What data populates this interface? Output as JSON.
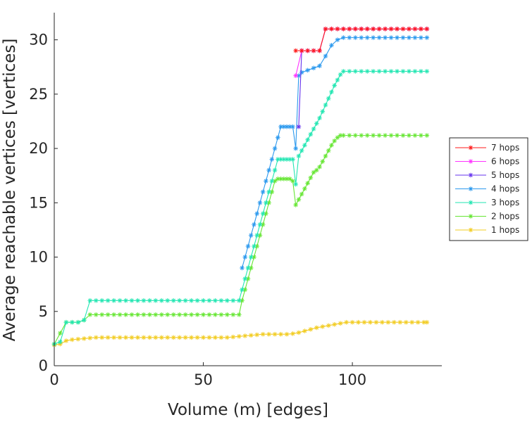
{
  "chart_data": {
    "type": "line",
    "xlabel": "Volume (m) [edges]",
    "ylabel": "Average reachable vertices [vertices]",
    "xlim": [
      0,
      130
    ],
    "ylim": [
      0,
      32.5
    ],
    "xticks": [
      "0",
      "50",
      "100"
    ],
    "yticks": [
      "0",
      "5",
      "10",
      "15",
      "20",
      "25",
      "30"
    ],
    "grid": false,
    "legend_position": "right",
    "marker": "asterisk",
    "series": [
      {
        "name": "7 hops",
        "color": "#ff1a1a",
        "x": [
          81,
          83,
          85,
          87,
          89,
          91,
          93,
          95,
          97,
          99,
          101,
          103,
          105,
          107,
          109,
          111,
          113,
          115,
          117,
          119,
          121,
          123,
          125
        ],
        "y": [
          29,
          29,
          29,
          29,
          29,
          31,
          31,
          31,
          31,
          31,
          31,
          31,
          31,
          31,
          31,
          31,
          31,
          31,
          31,
          31,
          31,
          31,
          31
        ]
      },
      {
        "name": "6 hops",
        "color": "#ff33ff",
        "x": [
          81,
          83,
          85,
          87,
          89,
          91,
          93,
          95,
          97,
          99,
          101,
          103,
          105,
          107,
          109,
          111,
          113,
          115,
          117,
          119,
          121,
          123,
          125
        ],
        "y": [
          26.7,
          29,
          29,
          29,
          29,
          31,
          31,
          31,
          31,
          31,
          31,
          31,
          31,
          31,
          31,
          31,
          31,
          31,
          31,
          31,
          31,
          31,
          31
        ]
      },
      {
        "name": "5 hops",
        "color": "#6633ee",
        "x": [
          82,
          83,
          85,
          87,
          89,
          91,
          93,
          95,
          97,
          99,
          101,
          103,
          105,
          107,
          109,
          111,
          113,
          115,
          117,
          119,
          121,
          123,
          125
        ],
        "y": [
          22,
          29,
          29,
          29,
          29,
          31,
          31,
          31,
          31,
          31,
          31,
          31,
          31,
          31,
          31,
          31,
          31,
          31,
          31,
          31,
          31,
          31,
          31
        ]
      },
      {
        "name": "4 hops",
        "color": "#2b99ee",
        "x": [
          63,
          64,
          65,
          66,
          67,
          68,
          69,
          70,
          71,
          72,
          73,
          74,
          75,
          76,
          77,
          78,
          79,
          80,
          81,
          82,
          83,
          85,
          87,
          89,
          91,
          93,
          95,
          97,
          99,
          101,
          103,
          105,
          107,
          109,
          111,
          113,
          115,
          117,
          119,
          121,
          123,
          125
        ],
        "y": [
          9,
          10,
          11,
          12,
          13,
          14,
          15,
          16,
          17,
          18,
          19,
          20,
          21,
          22,
          22,
          22,
          22,
          22,
          20,
          26.7,
          27,
          27.2,
          27.4,
          27.6,
          28.5,
          29.5,
          30,
          30.2,
          30.2,
          30.2,
          30.2,
          30.2,
          30.2,
          30.2,
          30.2,
          30.2,
          30.2,
          30.2,
          30.2,
          30.2,
          30.2,
          30.2
        ]
      },
      {
        "name": "3 hops",
        "color": "#22e6b2",
        "x": [
          0,
          2,
          4,
          6,
          8,
          10,
          12,
          14,
          16,
          18,
          20,
          22,
          24,
          26,
          28,
          30,
          32,
          34,
          36,
          38,
          40,
          42,
          44,
          46,
          48,
          50,
          52,
          54,
          56,
          58,
          60,
          62,
          63,
          64,
          65,
          66,
          67,
          68,
          69,
          70,
          71,
          72,
          73,
          74,
          75,
          76,
          77,
          78,
          79,
          80,
          81,
          82,
          83,
          84,
          85,
          86,
          87,
          88,
          89,
          90,
          91,
          92,
          93,
          94,
          95,
          96,
          97,
          99,
          101,
          103,
          105,
          107,
          109,
          111,
          113,
          115,
          117,
          119,
          121,
          123,
          125
        ],
        "y": [
          2,
          2.2,
          4,
          4,
          4,
          4.2,
          6,
          6,
          6,
          6,
          6,
          6,
          6,
          6,
          6,
          6,
          6,
          6,
          6,
          6,
          6,
          6,
          6,
          6,
          6,
          6,
          6,
          6,
          6,
          6,
          6,
          6,
          7,
          8,
          9,
          10,
          11,
          12,
          13,
          14,
          15,
          16,
          17,
          18,
          19,
          19,
          19,
          19,
          19,
          19,
          16.7,
          19.3,
          19.8,
          20.3,
          20.8,
          21.3,
          21.8,
          22.3,
          22.8,
          23.4,
          24,
          24.6,
          25.2,
          25.8,
          26.3,
          26.8,
          27.1,
          27.1,
          27.1,
          27.1,
          27.1,
          27.1,
          27.1,
          27.1,
          27.1,
          27.1,
          27.1,
          27.1,
          27.1,
          27.1,
          27.1
        ]
      },
      {
        "name": "2 hops",
        "color": "#66e633",
        "x": [
          0,
          2,
          4,
          6,
          8,
          10,
          12,
          14,
          16,
          18,
          20,
          22,
          24,
          26,
          28,
          30,
          32,
          34,
          36,
          38,
          40,
          42,
          44,
          46,
          48,
          50,
          52,
          54,
          56,
          58,
          60,
          62,
          63,
          64,
          65,
          66,
          67,
          68,
          69,
          70,
          71,
          72,
          73,
          74,
          75,
          76,
          77,
          78,
          79,
          80,
          81,
          82,
          83,
          84,
          85,
          86,
          87,
          88,
          89,
          90,
          91,
          92,
          93,
          94,
          95,
          96,
          97,
          99,
          101,
          103,
          105,
          107,
          109,
          111,
          113,
          115,
          117,
          119,
          121,
          123,
          125
        ],
        "y": [
          2,
          3,
          4,
          4,
          4,
          4.2,
          4.7,
          4.7,
          4.7,
          4.7,
          4.7,
          4.7,
          4.7,
          4.7,
          4.7,
          4.7,
          4.7,
          4.7,
          4.7,
          4.7,
          4.7,
          4.7,
          4.7,
          4.7,
          4.7,
          4.7,
          4.7,
          4.7,
          4.7,
          4.7,
          4.7,
          4.7,
          6,
          7,
          8,
          9,
          10,
          11,
          12,
          13,
          14,
          15,
          16,
          17,
          17.2,
          17.2,
          17.2,
          17.2,
          17.2,
          17,
          14.8,
          15.3,
          15.8,
          16.3,
          16.8,
          17.3,
          17.8,
          18,
          18.3,
          18.8,
          19.3,
          19.8,
          20.3,
          20.7,
          21,
          21.2,
          21.2,
          21.2,
          21.2,
          21.2,
          21.2,
          21.2,
          21.2,
          21.2,
          21.2,
          21.2,
          21.2,
          21.2,
          21.2,
          21.2,
          21.2
        ]
      },
      {
        "name": "1 hops",
        "color": "#f2cc22",
        "x": [
          0,
          2,
          4,
          6,
          8,
          10,
          12,
          14,
          16,
          18,
          20,
          22,
          24,
          26,
          28,
          30,
          32,
          34,
          36,
          38,
          40,
          42,
          44,
          46,
          48,
          50,
          52,
          54,
          56,
          58,
          60,
          62,
          64,
          66,
          68,
          70,
          72,
          74,
          76,
          78,
          80,
          82,
          84,
          86,
          88,
          90,
          92,
          94,
          96,
          98,
          100,
          102,
          104,
          106,
          108,
          110,
          112,
          114,
          116,
          118,
          120,
          122,
          124,
          125
        ],
        "y": [
          1.9,
          2,
          2.3,
          2.4,
          2.45,
          2.5,
          2.55,
          2.6,
          2.6,
          2.6,
          2.6,
          2.6,
          2.6,
          2.6,
          2.6,
          2.6,
          2.6,
          2.6,
          2.6,
          2.6,
          2.6,
          2.6,
          2.6,
          2.6,
          2.6,
          2.6,
          2.6,
          2.6,
          2.6,
          2.6,
          2.65,
          2.7,
          2.75,
          2.8,
          2.85,
          2.9,
          2.9,
          2.9,
          2.9,
          2.9,
          2.95,
          3.05,
          3.2,
          3.35,
          3.5,
          3.6,
          3.7,
          3.8,
          3.9,
          4,
          4,
          4,
          4,
          4,
          4,
          4,
          4,
          4,
          4,
          4,
          4,
          4,
          4,
          4
        ]
      }
    ]
  }
}
